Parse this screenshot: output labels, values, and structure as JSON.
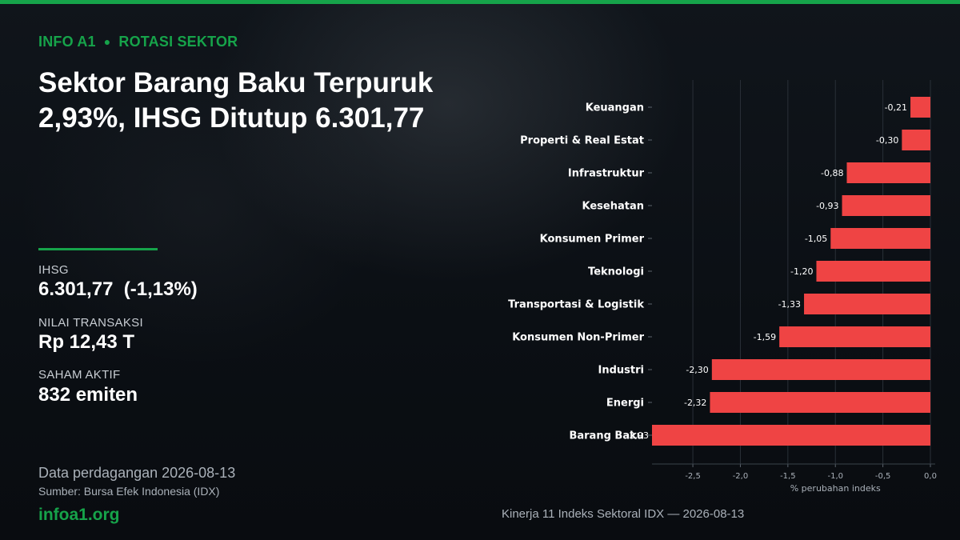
{
  "header": {
    "kicker_left": "INFO A1",
    "kicker_dot": "●",
    "kicker_right": "ROTASI SEKTOR",
    "headline_line1": "Sektor Barang Baku Terpuruk",
    "headline_line2": "2,93%, IHSG Ditutup 6.301,77"
  },
  "stats": [
    {
      "label": "IHSG",
      "value": "6.301,77  (-1,13%)"
    },
    {
      "label": "NILAI TRANSAKSI",
      "value": "Rp 12,43 T"
    },
    {
      "label": "SAHAM AKTIF",
      "value": "832 emiten"
    }
  ],
  "footer": {
    "data_date": "Data perdagangan 2026-08-13",
    "source": "Sumber: Bursa Efek Indonesia (IDX)",
    "brand": "infoa1.org",
    "chart_caption": "Kinerja 11 Indeks Sektoral IDX — 2026-08-13"
  },
  "colors": {
    "accent": "#16a34a",
    "bar": "#ef4444",
    "grid": "#2a3038"
  },
  "chart_data": {
    "type": "bar",
    "orientation": "horizontal",
    "categories": [
      "Keuangan",
      "Properti & Real Estat",
      "Infrastruktur",
      "Kesehatan",
      "Konsumen Primer",
      "Teknologi",
      "Transportasi & Logistik",
      "Konsumen Non-Primer",
      "Industri",
      "Energi",
      "Barang Baku"
    ],
    "values": [
      -0.21,
      -0.3,
      -0.88,
      -0.93,
      -1.05,
      -1.2,
      -1.33,
      -1.59,
      -2.3,
      -2.32,
      -2.93
    ],
    "value_labels": [
      "-0,21",
      "-0,30",
      "-0,88",
      "-0,93",
      "-1,05",
      "-1,20",
      "-1,33",
      "-1,59",
      "-2,30",
      "-2,32",
      "-2,93"
    ],
    "xlabel": "% perubahan indeks",
    "xlim": [
      -2.93,
      0.0
    ],
    "xticks": [
      -2.5,
      -2.0,
      -1.5,
      -1.0,
      -0.5,
      0.0
    ],
    "xtick_labels": [
      "-2,5",
      "-2,0",
      "-1,5",
      "-1,0",
      "-0,5",
      "0,0"
    ],
    "grid": true,
    "legend": "none"
  }
}
